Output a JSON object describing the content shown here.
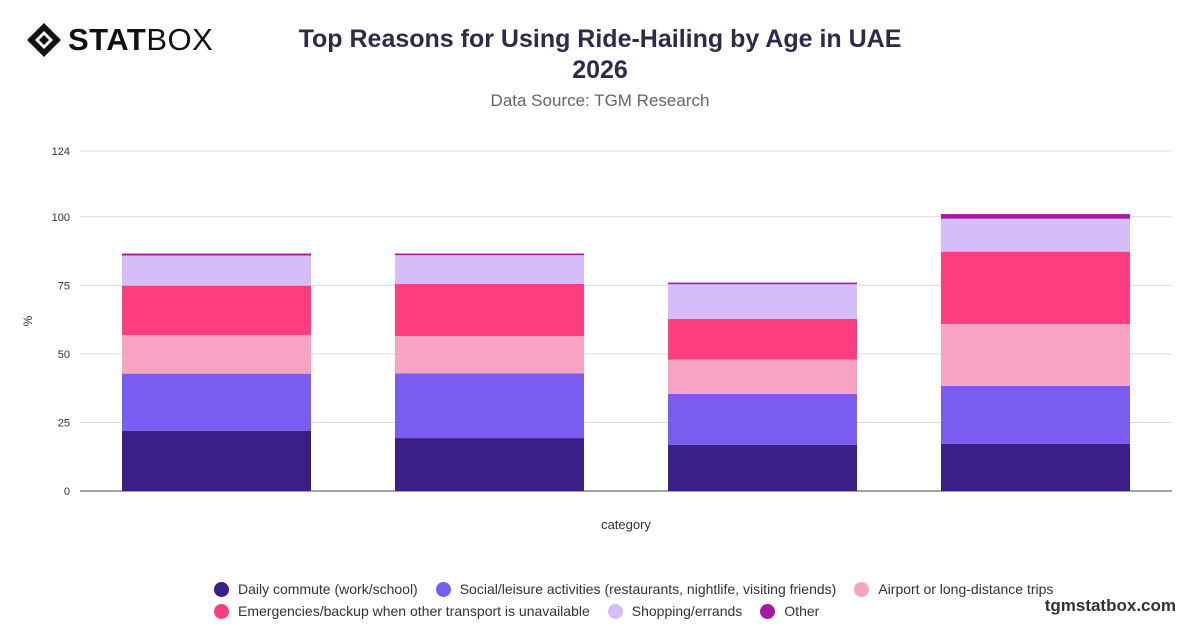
{
  "brand": {
    "logo_bold": "STAT",
    "logo_light": "BOX"
  },
  "header": {
    "title": "Top Reasons for Using Ride-Hailing by Age in UAE 2026",
    "subtitle": "Data Source: TGM Research"
  },
  "footer": {
    "site": "tgmstatbox.com"
  },
  "chart_data": {
    "type": "bar",
    "stacked": true,
    "title": "Top Reasons for Using Ride-Hailing by Age in UAE 2026",
    "xlabel": "category",
    "ylabel": "%",
    "ylim": [
      0,
      124
    ],
    "yticks": [
      0,
      25,
      50,
      75,
      100,
      124
    ],
    "grid": true,
    "legend_position": "bottom",
    "categories": [
      "",
      "",
      "",
      ""
    ],
    "series": [
      {
        "name": "Daily commute (work/school)",
        "color": "#3a1f87",
        "values": [
          22,
          19.3,
          16.8,
          17.2
        ]
      },
      {
        "name": "Social/leisure activities (restaurants, nightlife, visiting friends)",
        "color": "#7b5cf0",
        "values": [
          20.8,
          23.6,
          18.6,
          21.1
        ]
      },
      {
        "name": "Airport or long-distance trips",
        "color": "#f9a3c4",
        "values": [
          14.1,
          13.6,
          12.5,
          22.6
        ]
      },
      {
        "name": "Emergencies/backup when other transport is unavailable",
        "color": "#ff3d7f",
        "values": [
          18,
          19,
          14.9,
          26.4
        ]
      },
      {
        "name": "Shopping/errands",
        "color": "#d5bdfb",
        "values": [
          11,
          10.5,
          12.6,
          12
        ]
      },
      {
        "name": "Other",
        "color": "#a619a0",
        "values": [
          0.7,
          0.6,
          0.6,
          1.7
        ]
      }
    ]
  }
}
